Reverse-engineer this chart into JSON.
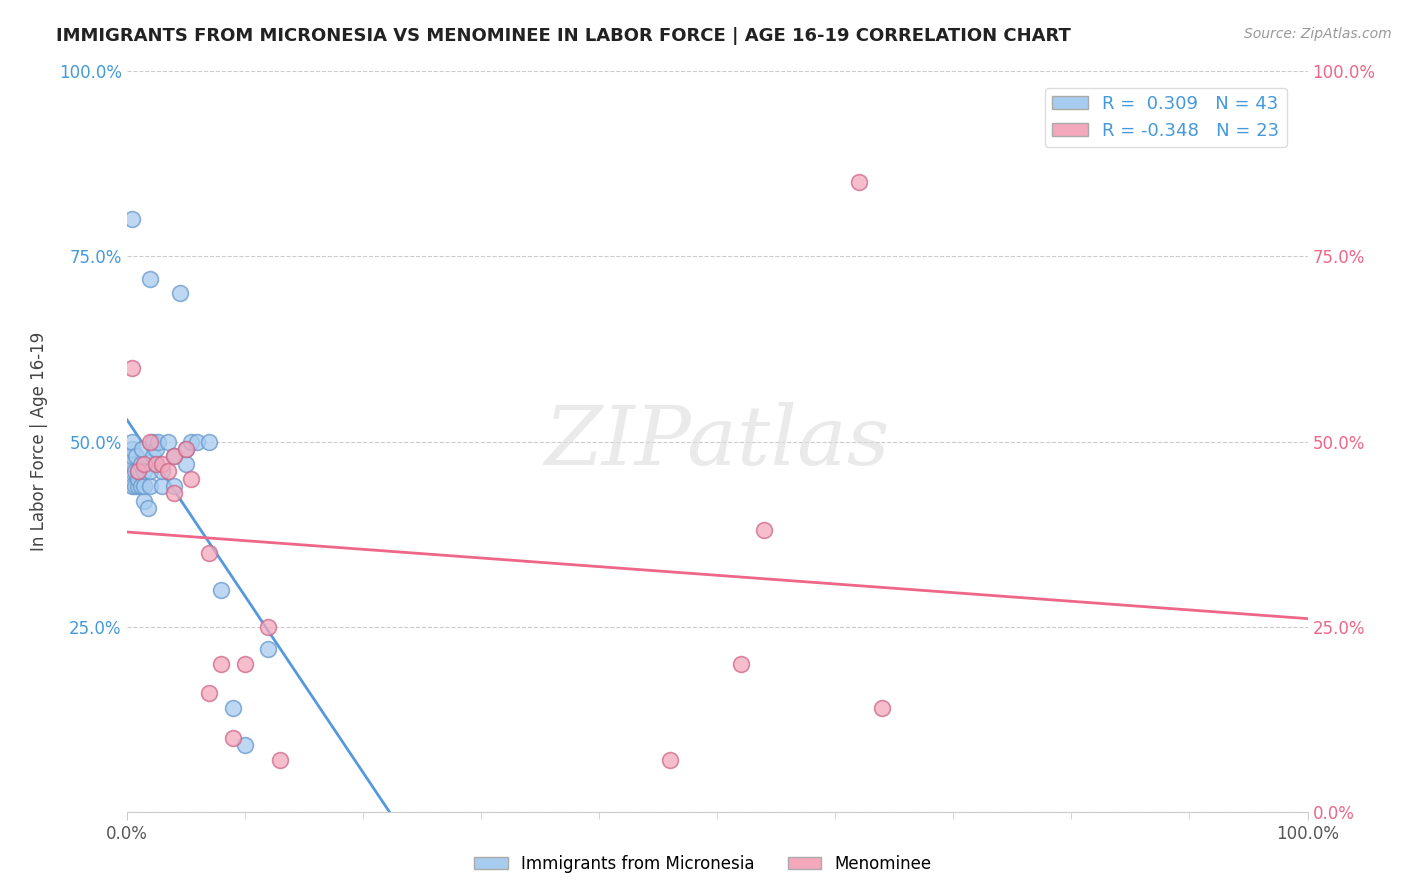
{
  "title": "IMMIGRANTS FROM MICRONESIA VS MENOMINEE IN LABOR FORCE | AGE 16-19 CORRELATION CHART",
  "source_text": "Source: ZipAtlas.com",
  "ylabel": "In Labor Force | Age 16-19",
  "xlim": [
    0.0,
    1.0
  ],
  "ylim": [
    0.0,
    1.0
  ],
  "ytick_positions": [
    0.0,
    0.25,
    0.5,
    0.75,
    1.0
  ],
  "blue_R": 0.309,
  "blue_N": 43,
  "pink_R": -0.348,
  "pink_N": 23,
  "blue_color": "#A8CCF0",
  "pink_color": "#F4A8BC",
  "blue_edge_color": "#6699CC",
  "pink_edge_color": "#CC6688",
  "blue_line_color": "#5599DD",
  "pink_line_color": "#EE6688",
  "blue_label_color": "#4499DD",
  "pink_label_color": "#EE6688",
  "watermark": "ZIPatlas",
  "legend_label_blue": "Immigrants from Micronesia",
  "legend_label_pink": "Menominee",
  "blue_scatter_x": [
    0.005,
    0.005,
    0.005,
    0.005,
    0.005,
    0.005,
    0.007,
    0.007,
    0.008,
    0.01,
    0.01,
    0.01,
    0.012,
    0.012,
    0.013,
    0.015,
    0.015,
    0.015,
    0.018,
    0.02,
    0.02,
    0.022,
    0.022,
    0.025,
    0.025,
    0.027,
    0.03,
    0.03,
    0.035,
    0.04,
    0.04,
    0.05,
    0.05,
    0.055,
    0.06,
    0.07,
    0.08,
    0.09,
    0.1,
    0.12,
    0.02,
    0.045,
    0.005
  ],
  "blue_scatter_y": [
    0.44,
    0.46,
    0.47,
    0.48,
    0.49,
    0.5,
    0.44,
    0.46,
    0.48,
    0.44,
    0.45,
    0.46,
    0.44,
    0.47,
    0.49,
    0.42,
    0.44,
    0.46,
    0.41,
    0.44,
    0.46,
    0.48,
    0.5,
    0.47,
    0.49,
    0.5,
    0.44,
    0.46,
    0.5,
    0.44,
    0.48,
    0.47,
    0.49,
    0.5,
    0.5,
    0.5,
    0.3,
    0.14,
    0.09,
    0.22,
    0.72,
    0.7,
    0.8
  ],
  "pink_scatter_x": [
    0.005,
    0.01,
    0.015,
    0.02,
    0.025,
    0.03,
    0.035,
    0.04,
    0.04,
    0.05,
    0.055,
    0.07,
    0.07,
    0.08,
    0.09,
    0.1,
    0.12,
    0.13,
    0.46,
    0.52,
    0.54,
    0.62,
    0.64
  ],
  "pink_scatter_y": [
    0.6,
    0.46,
    0.47,
    0.5,
    0.47,
    0.47,
    0.46,
    0.48,
    0.43,
    0.49,
    0.45,
    0.35,
    0.16,
    0.2,
    0.1,
    0.2,
    0.25,
    0.07,
    0.07,
    0.2,
    0.38,
    0.85,
    0.14
  ]
}
